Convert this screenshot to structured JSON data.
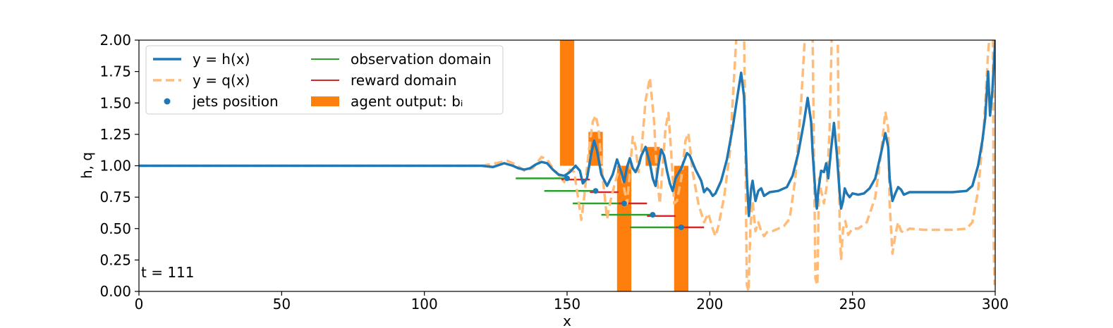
{
  "chart_data": {
    "type": "line",
    "title": "",
    "xlabel": "x",
    "ylabel": "h, q",
    "xlim": [
      0,
      300
    ],
    "ylim": [
      0,
      2
    ],
    "grid": false,
    "legend_position": "top-left",
    "x_ticks": [
      "0",
      "50",
      "100",
      "150",
      "200",
      "250",
      "300"
    ],
    "y_ticks": [
      "0.00",
      "0.25",
      "0.50",
      "0.75",
      "1.00",
      "1.25",
      "1.50",
      "1.75",
      "2.00"
    ],
    "annotation": "t = 111",
    "colors": {
      "h": "#1f77b4",
      "q": "#ffbb78",
      "observation": "#2ca02c",
      "reward": "#d62728",
      "agent": "#ff7f0e",
      "jets": "#1f77b4"
    },
    "legend": [
      {
        "key": "h",
        "label": "y = h(x)"
      },
      {
        "key": "q",
        "label": "y = q(x)"
      },
      {
        "key": "jets",
        "label": "jets position"
      },
      {
        "key": "observation",
        "label": "observation domain"
      },
      {
        "key": "reward",
        "label": "reward domain"
      },
      {
        "key": "agent",
        "label": "agent output: bᵢ"
      }
    ],
    "series": [
      {
        "name": "y = h(x)",
        "style": "solid",
        "points": [
          [
            0,
            1.0
          ],
          [
            120,
            1.0
          ],
          [
            124,
            0.99
          ],
          [
            128,
            1.02
          ],
          [
            131,
            1.0
          ],
          [
            133,
            0.98
          ],
          [
            135,
            0.97
          ],
          [
            137,
            0.98
          ],
          [
            139,
            1.01
          ],
          [
            141,
            1.03
          ],
          [
            143,
            1.02
          ],
          [
            145,
            0.97
          ],
          [
            147,
            0.93
          ],
          [
            149,
            0.92
          ],
          [
            151,
            0.95
          ],
          [
            153,
            1.0
          ],
          [
            154.5,
            0.96
          ],
          [
            155.5,
            0.86
          ],
          [
            157,
            0.9
          ],
          [
            158.5,
            1.1
          ],
          [
            159.5,
            1.2
          ],
          [
            160.5,
            1.12
          ],
          [
            162,
            0.93
          ],
          [
            164,
            0.84
          ],
          [
            166,
            0.93
          ],
          [
            167.5,
            1.05
          ],
          [
            169,
            0.95
          ],
          [
            170,
            0.87
          ],
          [
            171,
            0.99
          ],
          [
            172,
            1.06
          ],
          [
            173,
            0.98
          ],
          [
            174,
            0.95
          ],
          [
            175,
            1.0
          ],
          [
            176,
            1.08
          ],
          [
            177.5,
            1.15
          ],
          [
            179,
            1.02
          ],
          [
            180,
            0.9
          ],
          [
            181,
            0.84
          ],
          [
            182,
            1.0
          ],
          [
            183,
            1.13
          ],
          [
            184,
            1.08
          ],
          [
            185,
            0.96
          ],
          [
            186,
            0.86
          ],
          [
            187,
            0.8
          ],
          [
            188,
            0.9
          ],
          [
            190,
            0.98
          ],
          [
            192,
            1.1
          ],
          [
            193,
            1.08
          ],
          [
            195,
            0.97
          ],
          [
            197,
            0.88
          ],
          [
            198,
            0.79
          ],
          [
            199,
            0.82
          ],
          [
            200,
            0.8
          ],
          [
            201,
            0.76
          ],
          [
            202,
            0.78
          ],
          [
            204,
            0.88
          ],
          [
            206,
            1.05
          ],
          [
            208,
            1.3
          ],
          [
            210,
            1.6
          ],
          [
            211,
            1.74
          ],
          [
            212,
            1.55
          ],
          [
            213,
            0.9
          ],
          [
            213.7,
            0.6
          ],
          [
            214.5,
            0.82
          ],
          [
            215,
            0.88
          ],
          [
            216,
            0.72
          ],
          [
            217,
            0.8
          ],
          [
            218,
            0.82
          ],
          [
            219,
            0.76
          ],
          [
            221,
            0.79
          ],
          [
            224,
            0.8
          ],
          [
            227,
            0.83
          ],
          [
            229,
            0.92
          ],
          [
            231,
            1.1
          ],
          [
            233,
            1.35
          ],
          [
            234.3,
            1.54
          ],
          [
            235.5,
            1.35
          ],
          [
            236,
            1.12
          ],
          [
            237,
            0.78
          ],
          [
            237.5,
            0.66
          ],
          [
            238,
            0.8
          ],
          [
            239,
            0.96
          ],
          [
            240,
            0.95
          ],
          [
            240.8,
            1.02
          ],
          [
            241.5,
            0.9
          ],
          [
            242.5,
            1.13
          ],
          [
            243.5,
            1.34
          ],
          [
            244.5,
            1.1
          ],
          [
            245.5,
            0.78
          ],
          [
            246,
            0.66
          ],
          [
            246.7,
            0.72
          ],
          [
            247.3,
            0.82
          ],
          [
            248,
            0.78
          ],
          [
            249,
            0.75
          ],
          [
            250,
            0.78
          ],
          [
            252,
            0.77
          ],
          [
            254,
            0.78
          ],
          [
            256,
            0.82
          ],
          [
            258,
            0.9
          ],
          [
            260,
            1.1
          ],
          [
            261.5,
            1.26
          ],
          [
            262.5,
            1.15
          ],
          [
            263,
            0.9
          ],
          [
            264,
            0.72
          ],
          [
            265,
            0.78
          ],
          [
            266,
            0.83
          ],
          [
            267,
            0.81
          ],
          [
            268,
            0.77
          ],
          [
            270,
            0.79
          ],
          [
            275,
            0.79
          ],
          [
            285,
            0.79
          ],
          [
            290,
            0.8
          ],
          [
            292,
            0.84
          ],
          [
            294,
            1.0
          ],
          [
            295.5,
            1.2
          ],
          [
            296.5,
            1.38
          ],
          [
            297.5,
            1.75
          ],
          [
            298.2,
            1.4
          ],
          [
            299,
            1.6
          ],
          [
            300,
            2.0
          ]
        ]
      },
      {
        "name": "y = q(x)",
        "style": "dashed",
        "points": [
          [
            0,
            1.0
          ],
          [
            120,
            1.0
          ],
          [
            125,
            1.02
          ],
          [
            129,
            1.04
          ],
          [
            132,
            1.01
          ],
          [
            135,
            0.96
          ],
          [
            138,
            0.98
          ],
          [
            141,
            1.07
          ],
          [
            143,
            1.05
          ],
          [
            145,
            0.98
          ],
          [
            147,
            0.93
          ],
          [
            149,
            0.87
          ],
          [
            151,
            0.97
          ],
          [
            152.5,
            0.95
          ],
          [
            154,
            0.72
          ],
          [
            155,
            0.57
          ],
          [
            156,
            0.75
          ],
          [
            157.5,
            1.1
          ],
          [
            159,
            1.35
          ],
          [
            160,
            1.4
          ],
          [
            161,
            1.3
          ],
          [
            162.5,
            0.9
          ],
          [
            164,
            0.58
          ],
          [
            165.5,
            0.75
          ],
          [
            167,
            0.88
          ],
          [
            168.5,
            1.0
          ],
          [
            170,
            0.82
          ],
          [
            171,
            0.7
          ],
          [
            172,
            0.95
          ],
          [
            173,
            1.23
          ],
          [
            174,
            1.15
          ],
          [
            175,
            0.95
          ],
          [
            176,
            1.1
          ],
          [
            177.5,
            1.52
          ],
          [
            179,
            1.7
          ],
          [
            180.5,
            1.35
          ],
          [
            181.5,
            0.9
          ],
          [
            182.5,
            0.7
          ],
          [
            183.5,
            1.0
          ],
          [
            184.5,
            1.3
          ],
          [
            185.5,
            1.42
          ],
          [
            186.5,
            1.1
          ],
          [
            187.5,
            0.7
          ],
          [
            188.5,
            0.72
          ],
          [
            190,
            0.9
          ],
          [
            191.5,
            1.2
          ],
          [
            192.5,
            1.26
          ],
          [
            194,
            0.95
          ],
          [
            196,
            0.7
          ],
          [
            198,
            0.55
          ],
          [
            199.5,
            0.62
          ],
          [
            201,
            0.5
          ],
          [
            202,
            0.44
          ],
          [
            203,
            0.52
          ],
          [
            205,
            0.75
          ],
          [
            207,
            1.1
          ],
          [
            208.5,
            1.7
          ],
          [
            209.5,
            2.1
          ],
          [
            212,
            2.1
          ],
          [
            213,
            0.05
          ],
          [
            213.6,
            0.0
          ],
          [
            214.2,
            0.5
          ],
          [
            215,
            0.72
          ],
          [
            216,
            0.48
          ],
          [
            217,
            0.55
          ],
          [
            218,
            0.48
          ],
          [
            219,
            0.44
          ],
          [
            220,
            0.47
          ],
          [
            222,
            0.48
          ],
          [
            224,
            0.5
          ],
          [
            226,
            0.52
          ],
          [
            228,
            0.58
          ],
          [
            230,
            0.9
          ],
          [
            232,
            1.5
          ],
          [
            233.5,
            2.1
          ],
          [
            236,
            2.1
          ],
          [
            237,
            0.1
          ],
          [
            237.7,
            0.05
          ],
          [
            238.3,
            0.9
          ],
          [
            239,
            0.8
          ],
          [
            240,
            0.7
          ],
          [
            241,
            0.84
          ],
          [
            242,
            1.3
          ],
          [
            242.8,
            2.1
          ],
          [
            244.8,
            2.1
          ],
          [
            245.5,
            0.5
          ],
          [
            246,
            0.25
          ],
          [
            246.7,
            0.5
          ],
          [
            247.5,
            0.56
          ],
          [
            248.5,
            0.45
          ],
          [
            250,
            0.5
          ],
          [
            252,
            0.5
          ],
          [
            255,
            0.55
          ],
          [
            258,
            0.75
          ],
          [
            260,
            1.1
          ],
          [
            261.5,
            1.43
          ],
          [
            262.5,
            1.3
          ],
          [
            263,
            0.7
          ],
          [
            264,
            0.3
          ],
          [
            265,
            0.45
          ],
          [
            266,
            0.55
          ],
          [
            267,
            0.48
          ],
          [
            268,
            0.47
          ],
          [
            270,
            0.5
          ],
          [
            275,
            0.49
          ],
          [
            285,
            0.49
          ],
          [
            290,
            0.5
          ],
          [
            292,
            0.55
          ],
          [
            294,
            0.8
          ],
          [
            296,
            1.3
          ],
          [
            297.5,
            1.9
          ],
          [
            298.3,
            2.1
          ],
          [
            299.2,
            2.1
          ],
          [
            299.5,
            0.3
          ],
          [
            299.8,
            0.05
          ]
        ]
      }
    ],
    "jets": [
      [
        150,
        0.9
      ],
      [
        160,
        0.8
      ],
      [
        170,
        0.7
      ],
      [
        180,
        0.61
      ],
      [
        190,
        0.51
      ]
    ],
    "observation_domains": [
      [
        132,
        150,
        0.9
      ],
      [
        142,
        160,
        0.8
      ],
      [
        152,
        170,
        0.7
      ],
      [
        162,
        180,
        0.61
      ],
      [
        172,
        190,
        0.51
      ]
    ],
    "reward_domains": [
      [
        148,
        158,
        0.89
      ],
      [
        158,
        168,
        0.79
      ],
      [
        168,
        178,
        0.7
      ],
      [
        178,
        188,
        0.6
      ],
      [
        188,
        198,
        0.51
      ]
    ],
    "agent_output": [
      {
        "x": 150,
        "width": 5,
        "base": 1.0,
        "value": 1.0
      },
      {
        "x": 160,
        "width": 5,
        "base": 1.0,
        "value": 0.27
      },
      {
        "x": 170,
        "width": 5,
        "base": 1.0,
        "value": -1.0
      },
      {
        "x": 180,
        "width": 5,
        "base": 1.0,
        "value": 0.15
      },
      {
        "x": 190,
        "width": 5,
        "base": 1.0,
        "value": -1.0
      }
    ]
  }
}
